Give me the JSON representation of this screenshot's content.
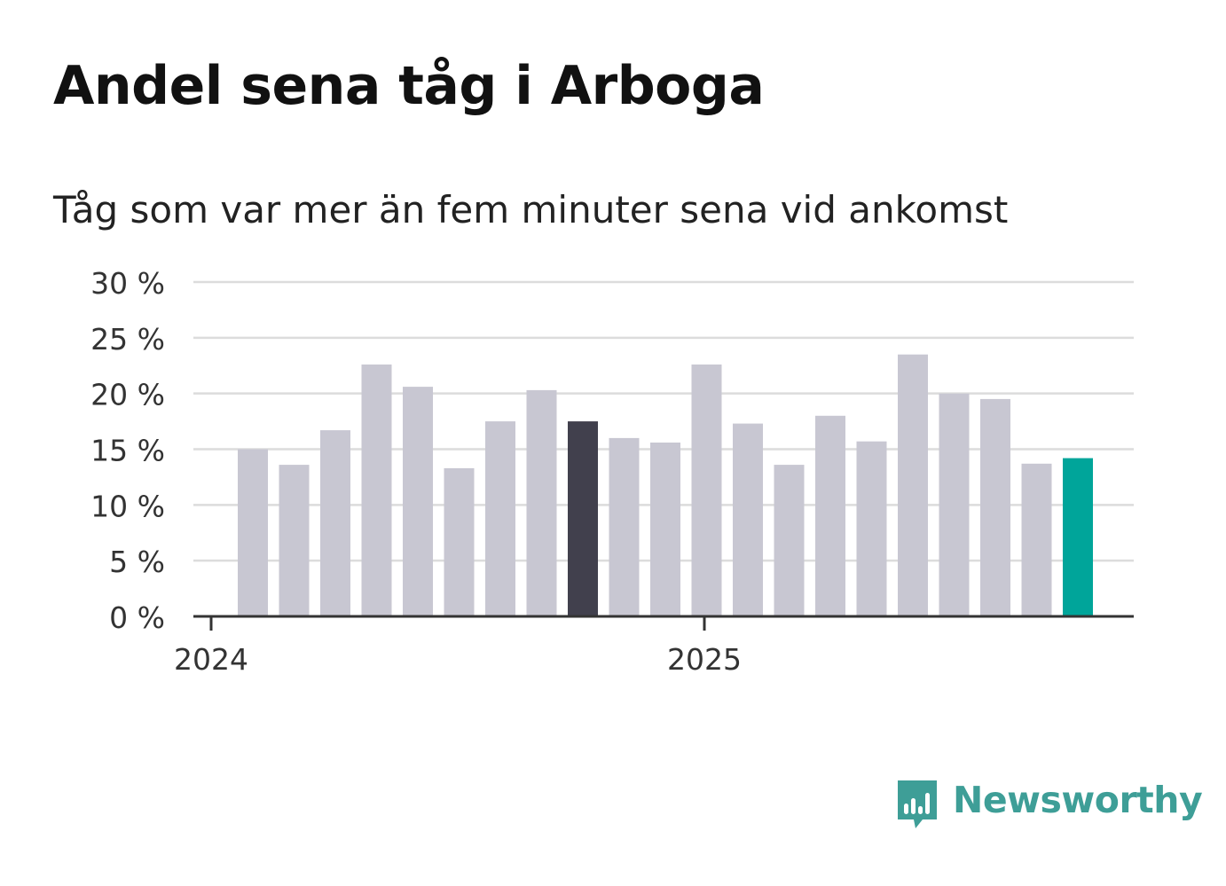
{
  "chart_data": {
    "type": "bar",
    "title": "Andel sena tåg i Arboga",
    "subtitle": "Tåg som var mer än fem minuter sena vid ankomst",
    "xlabel": "",
    "ylabel": "",
    "ylim": [
      0,
      30
    ],
    "yticks": [
      {
        "value": 0,
        "label": "0 %"
      },
      {
        "value": 5,
        "label": "5 %"
      },
      {
        "value": 10,
        "label": "10 %"
      },
      {
        "value": 15,
        "label": "15 %"
      },
      {
        "value": 20,
        "label": "20 %"
      },
      {
        "value": 25,
        "label": "25 %"
      },
      {
        "value": 30,
        "label": "30 %"
      }
    ],
    "xticks": [
      {
        "index": 0,
        "label": "2024"
      },
      {
        "index": 12,
        "label": "2025"
      }
    ],
    "grid": true,
    "values": [
      15.0,
      13.6,
      16.7,
      22.6,
      20.6,
      13.3,
      17.5,
      20.3,
      17.5,
      16.0,
      15.6,
      22.6,
      17.3,
      13.6,
      18.0,
      15.7,
      23.5,
      20.0,
      19.5,
      13.7,
      14.2
    ],
    "highlights": [
      {
        "index": 8,
        "role": "reference"
      },
      {
        "index": 20,
        "role": "latest"
      }
    ],
    "colors": {
      "default": "#c8c7d2",
      "reference": "#41404d",
      "latest": "#00a59a",
      "grid": "#dcdcdc",
      "axis": "#333333"
    }
  },
  "brand": {
    "name": "Newsworthy",
    "icon": "newsworthy-logo-icon",
    "color": "#3e9e97"
  }
}
